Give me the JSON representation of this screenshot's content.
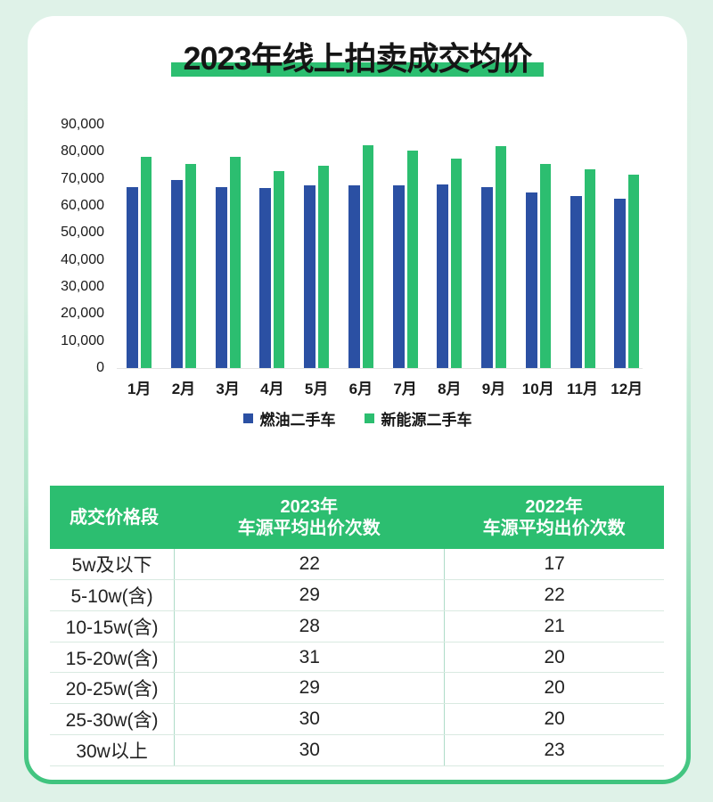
{
  "title": "2023年线上拍卖成交均价",
  "colors": {
    "background": "#DFF2E8",
    "card": "#FFFFFF",
    "brand_green": "#2CBE70",
    "bar_blue": "#2B50A3",
    "border_green": "#3FC47E",
    "header_green": "#2CBE70",
    "row_divider": "#D9EAE1",
    "col_divider": "#AEDCC8",
    "axis_line": "#E3E3E3",
    "text_dark": "#151515"
  },
  "chart_data": {
    "type": "bar",
    "categories": [
      "1月",
      "2月",
      "3月",
      "4月",
      "5月",
      "6月",
      "7月",
      "8月",
      "9月",
      "10月",
      "11月",
      "12月"
    ],
    "series": [
      {
        "name": "燃油二手车",
        "color": "#2B50A3",
        "values": [
          67000,
          69500,
          67000,
          66500,
          67500,
          67500,
          67500,
          68000,
          67000,
          65000,
          63500,
          62500
        ]
      },
      {
        "name": "新能源二手车",
        "color": "#2CBE70",
        "values": [
          78000,
          75500,
          78000,
          73000,
          75000,
          82500,
          80500,
          77500,
          82000,
          75500,
          73500,
          71500
        ]
      }
    ],
    "title": "2023年线上拍卖成交均价",
    "xlabel": "",
    "ylabel": "",
    "ylim": [
      0,
      90000
    ],
    "ytick_step": 10000,
    "ytick_labels": [
      "0",
      "10,000",
      "20,000",
      "30,000",
      "40,000",
      "50,000",
      "60,000",
      "70,000",
      "80,000",
      "90,000"
    ],
    "grid": false,
    "legend_position": "bottom"
  },
  "table": {
    "columns": [
      {
        "header_lines": [
          "成交价格段"
        ]
      },
      {
        "header_lines": [
          "2023年",
          "车源平均出价次数"
        ]
      },
      {
        "header_lines": [
          "2022年",
          "车源平均出价次数"
        ]
      }
    ],
    "rows": [
      {
        "range": "5w及以下",
        "y2023": "22",
        "y2022": "17"
      },
      {
        "range": "5-10w(含)",
        "y2023": "29",
        "y2022": "22"
      },
      {
        "range": "10-15w(含)",
        "y2023": "28",
        "y2022": "21"
      },
      {
        "range": "15-20w(含)",
        "y2023": "31",
        "y2022": "20"
      },
      {
        "range": "20-25w(含)",
        "y2023": "29",
        "y2022": "20"
      },
      {
        "range": "25-30w(含)",
        "y2023": "30",
        "y2022": "20"
      },
      {
        "range": "30w以上",
        "y2023": "30",
        "y2022": "23"
      }
    ]
  }
}
